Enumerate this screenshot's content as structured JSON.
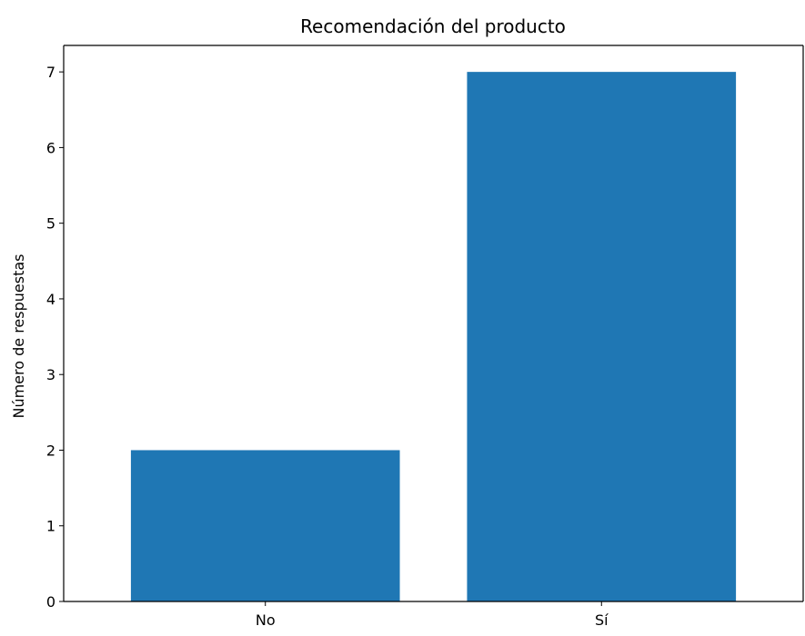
{
  "chart_data": {
    "type": "bar",
    "title": "Recomendación del producto",
    "xlabel": "",
    "ylabel": "Número de respuestas",
    "categories": [
      "No",
      "Sí"
    ],
    "values": [
      2,
      7
    ],
    "ylim": [
      0,
      7.35
    ],
    "yticks": [
      0,
      1,
      2,
      3,
      4,
      5,
      6,
      7
    ],
    "bar_color": "#1f77b4",
    "grid": false,
    "legend": "none"
  }
}
